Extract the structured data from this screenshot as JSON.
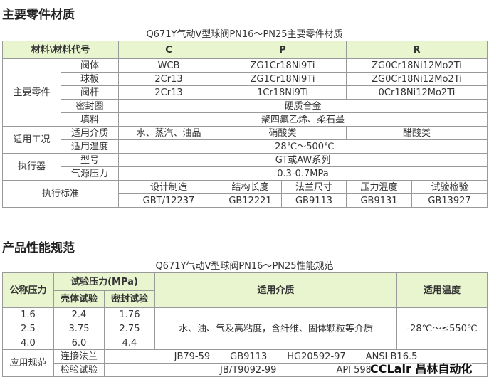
{
  "section1": {
    "heading": "主要零件材质",
    "caption": "Q671Y气动V型球阀PN16～PN25主要零件材质",
    "header": [
      "材料\\材料代号",
      "C",
      "P",
      "R"
    ],
    "main_parts": {
      "label": "主要零件",
      "rows": [
        {
          "name": "阀体",
          "c": "WCB",
          "p": "ZG1Cr18Ni9Ti",
          "r": "ZG0Cr18Ni12Mo2Ti"
        },
        {
          "name": "球板",
          "c": "2Cr13",
          "p": "ZG1Cr18Ni9Ti",
          "r": "ZG0Cr18Ni12Mo2Ti"
        },
        {
          "name": "阀杆",
          "c": "2Cr13",
          "p": "1Cr18Ni9Ti",
          "r": "0Cr18Ni12Mo2Ti"
        },
        {
          "name": "密封圈",
          "all": "硬质合金"
        },
        {
          "name": "填料",
          "all": "聚四氟乙烯、柔石墨"
        }
      ]
    },
    "conditions": {
      "label": "适用工况",
      "media": {
        "name": "适用介质",
        "c": "水、蒸汽、油品",
        "p": "硝酸类",
        "r": "醋酸类"
      },
      "temp": {
        "name": "适用温度",
        "all": "-28℃～500℃"
      }
    },
    "actuator": {
      "label": "执行器",
      "model": {
        "name": "型号",
        "all": "GT或AW系列"
      },
      "air": {
        "name": "气源压力",
        "all": "0.3-0.7MPa"
      }
    },
    "standards": {
      "label": "执行标准",
      "headers": [
        "设计制造",
        "结构长度",
        "法兰尺寸",
        "压力温度",
        "试验检验"
      ],
      "values": [
        "GBT/12237",
        "GB12221",
        "GB9113",
        "GB9131",
        "GB13927"
      ]
    }
  },
  "section2": {
    "heading": "产品性能规范",
    "caption": "Q671Y气动V型球阀PN16～PN25性能规范",
    "header": {
      "nominal": "公称压力",
      "test_pressure": "试验压力(MPa)",
      "shell": "壳体试验",
      "seal": "密封试验",
      "media": "适用介质",
      "temp": "适用温度"
    },
    "rows": [
      {
        "nominal": "1.6",
        "shell": "2.4",
        "seal": "1.76"
      },
      {
        "nominal": "2.5",
        "shell": "3.75",
        "seal": "2.75"
      },
      {
        "nominal": "4.0",
        "shell": "6.0",
        "seal": "4.4"
      }
    ],
    "media": "水、油、气及高粘度，含纤维、固体颗粒等介质",
    "temp": "-28℃～≤550℃",
    "spec": {
      "label": "应用规范",
      "flange": {
        "name": "连接法兰",
        "items": [
          "JB79-59",
          "GB9113",
          "HG20592-97",
          "ANSI B16.5"
        ]
      },
      "inspection": {
        "name": "检验试验",
        "items": [
          "JB/T9092-99",
          "API 598"
        ]
      }
    }
  },
  "watermark": "CCLair 昌林自动化"
}
